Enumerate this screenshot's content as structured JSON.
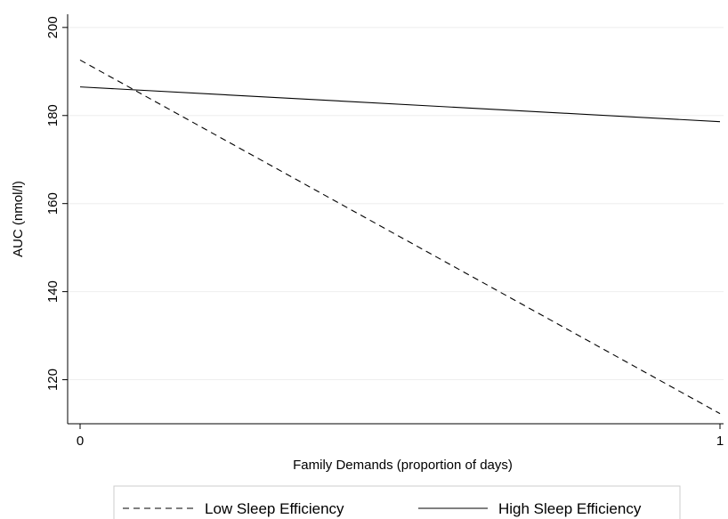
{
  "chart_data": {
    "type": "line",
    "title": "",
    "xlabel": "Family Demands (proportion of days)",
    "ylabel": "AUC (nmol/l)",
    "xlim": [
      0,
      1
    ],
    "ylim": [
      110,
      203
    ],
    "x_ticks": [
      0,
      1
    ],
    "x_tick_labels": [
      "0",
      "1"
    ],
    "y_ticks": [
      120,
      140,
      160,
      180,
      200
    ],
    "y_tick_labels": [
      "120",
      "140",
      "160",
      "180",
      "200"
    ],
    "grid": "horizontal",
    "legend_position": "bottom",
    "series": [
      {
        "name": "Low Sleep Efficiency",
        "style": "dashed",
        "color": "#000000",
        "x": [
          0,
          1
        ],
        "y": [
          192.6,
          112.3
        ]
      },
      {
        "name": "High Sleep Efficiency",
        "style": "solid",
        "color": "#000000",
        "x": [
          0,
          1
        ],
        "y": [
          186.5,
          178.6
        ]
      }
    ]
  }
}
